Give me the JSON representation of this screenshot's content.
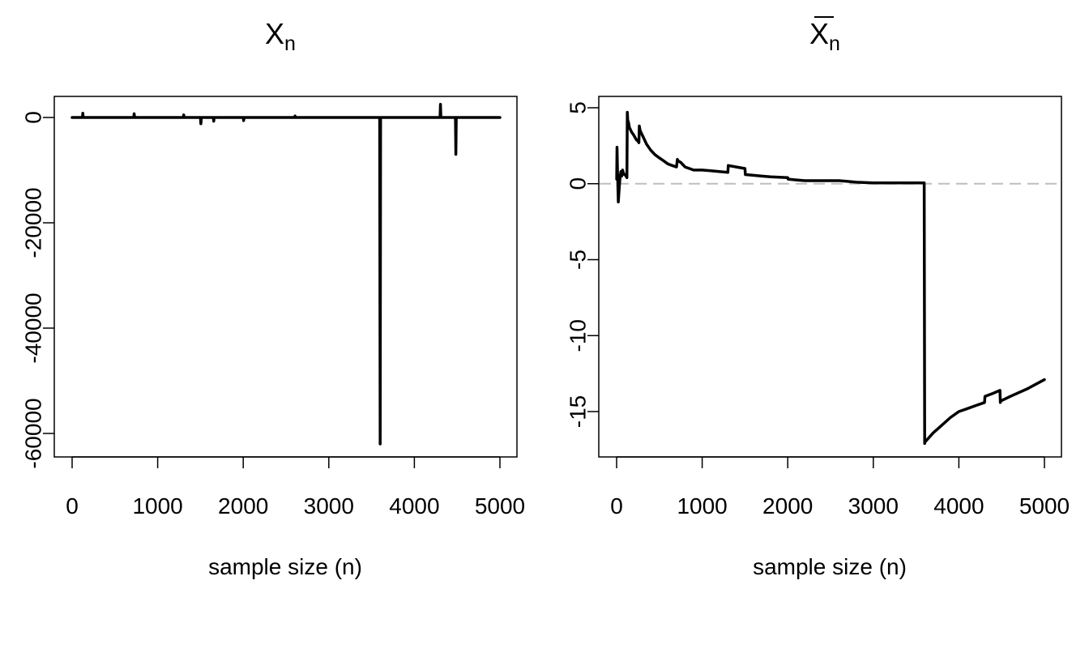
{
  "chart_data": [
    {
      "type": "line",
      "title_main": "X",
      "title_sub": "n",
      "xlabel": "sample size (n)",
      "ylabel": "",
      "xlim": [
        0,
        5000
      ],
      "ylim": [
        -65000,
        4000
      ],
      "xticks": [
        0,
        1000,
        2000,
        3000,
        4000,
        5000
      ],
      "yticks": [
        0,
        -20000,
        -40000,
        -60000
      ],
      "ytick_labels": [
        "0",
        "-20000",
        "-40000",
        "-60000"
      ],
      "series": [
        {
          "x": [
            0,
            120,
            125,
            130,
            300,
            720,
            725,
            730,
            1300,
            1305,
            1310,
            1500,
            1505,
            1510,
            1650,
            1655,
            1660,
            2000,
            2005,
            2010,
            2600,
            2605,
            2610,
            3595,
            3600,
            3605,
            4300,
            4305,
            4310,
            4480,
            4485,
            4490,
            5000
          ],
          "y": [
            0,
            0,
            800,
            0,
            0,
            0,
            700,
            0,
            0,
            500,
            0,
            0,
            -1200,
            0,
            0,
            -700,
            0,
            0,
            -600,
            0,
            0,
            300,
            0,
            0,
            -62000,
            0,
            0,
            2500,
            0,
            0,
            -7000,
            0,
            0
          ]
        }
      ]
    },
    {
      "type": "line",
      "title_main": "X",
      "title_sub": "n",
      "title_overline": true,
      "xlabel": "sample size (n)",
      "ylabel": "",
      "xlim": [
        0,
        5000
      ],
      "ylim": [
        -17.5,
        5.5
      ],
      "xticks": [
        0,
        1000,
        2000,
        3000,
        4000,
        5000
      ],
      "yticks": [
        5,
        0,
        -5,
        -10,
        -15
      ],
      "ytick_labels": [
        "5",
        "0",
        "-5",
        "-10",
        "-15"
      ],
      "reference_line": {
        "y": 0,
        "style": "dashed",
        "color": "#bebebe"
      },
      "series": [
        {
          "x": [
            1,
            5,
            10,
            20,
            30,
            40,
            50,
            60,
            70,
            80,
            90,
            100,
            110,
            120,
            125,
            130,
            140,
            150,
            175,
            200,
            230,
            250,
            260,
            265,
            275,
            300,
            350,
            400,
            450,
            500,
            550,
            600,
            650,
            700,
            710,
            720,
            750,
            800,
            850,
            900,
            1000,
            1100,
            1200,
            1300,
            1305,
            1400,
            1500,
            1505,
            1600,
            1700,
            1800,
            2000,
            2005,
            2100,
            2200,
            2300,
            2400,
            2500,
            2600,
            2700,
            2800,
            3000,
            3200,
            3400,
            3595,
            3600,
            3605,
            3700,
            3800,
            3900,
            4000,
            4100,
            4200,
            4300,
            4305,
            4400,
            4480,
            4485,
            4490,
            4600,
            4800,
            5000
          ],
          "y": [
            0.3,
            2.4,
            0.8,
            -1.2,
            -0.3,
            0.4,
            0.8,
            0.5,
            0.9,
            0.7,
            0.6,
            0.6,
            0.5,
            0.4,
            4.7,
            4.2,
            4.0,
            3.7,
            3.4,
            3.2,
            2.9,
            2.8,
            2.7,
            3.8,
            3.5,
            3.2,
            2.6,
            2.2,
            1.9,
            1.7,
            1.5,
            1.3,
            1.2,
            1.1,
            1.6,
            1.5,
            1.4,
            1.1,
            1.0,
            0.9,
            0.9,
            0.85,
            0.8,
            0.75,
            1.2,
            1.1,
            1.0,
            0.6,
            0.55,
            0.5,
            0.45,
            0.4,
            0.3,
            0.25,
            0.2,
            0.2,
            0.2,
            0.2,
            0.2,
            0.15,
            0.1,
            0.05,
            0.05,
            0.05,
            0.05,
            -17.1,
            -17.0,
            -16.4,
            -15.9,
            -15.4,
            -15.0,
            -14.8,
            -14.6,
            -14.4,
            -14.0,
            -13.8,
            -13.6,
            -14.4,
            -14.3,
            -14.0,
            -13.5,
            -12.9
          ]
        }
      ]
    }
  ]
}
